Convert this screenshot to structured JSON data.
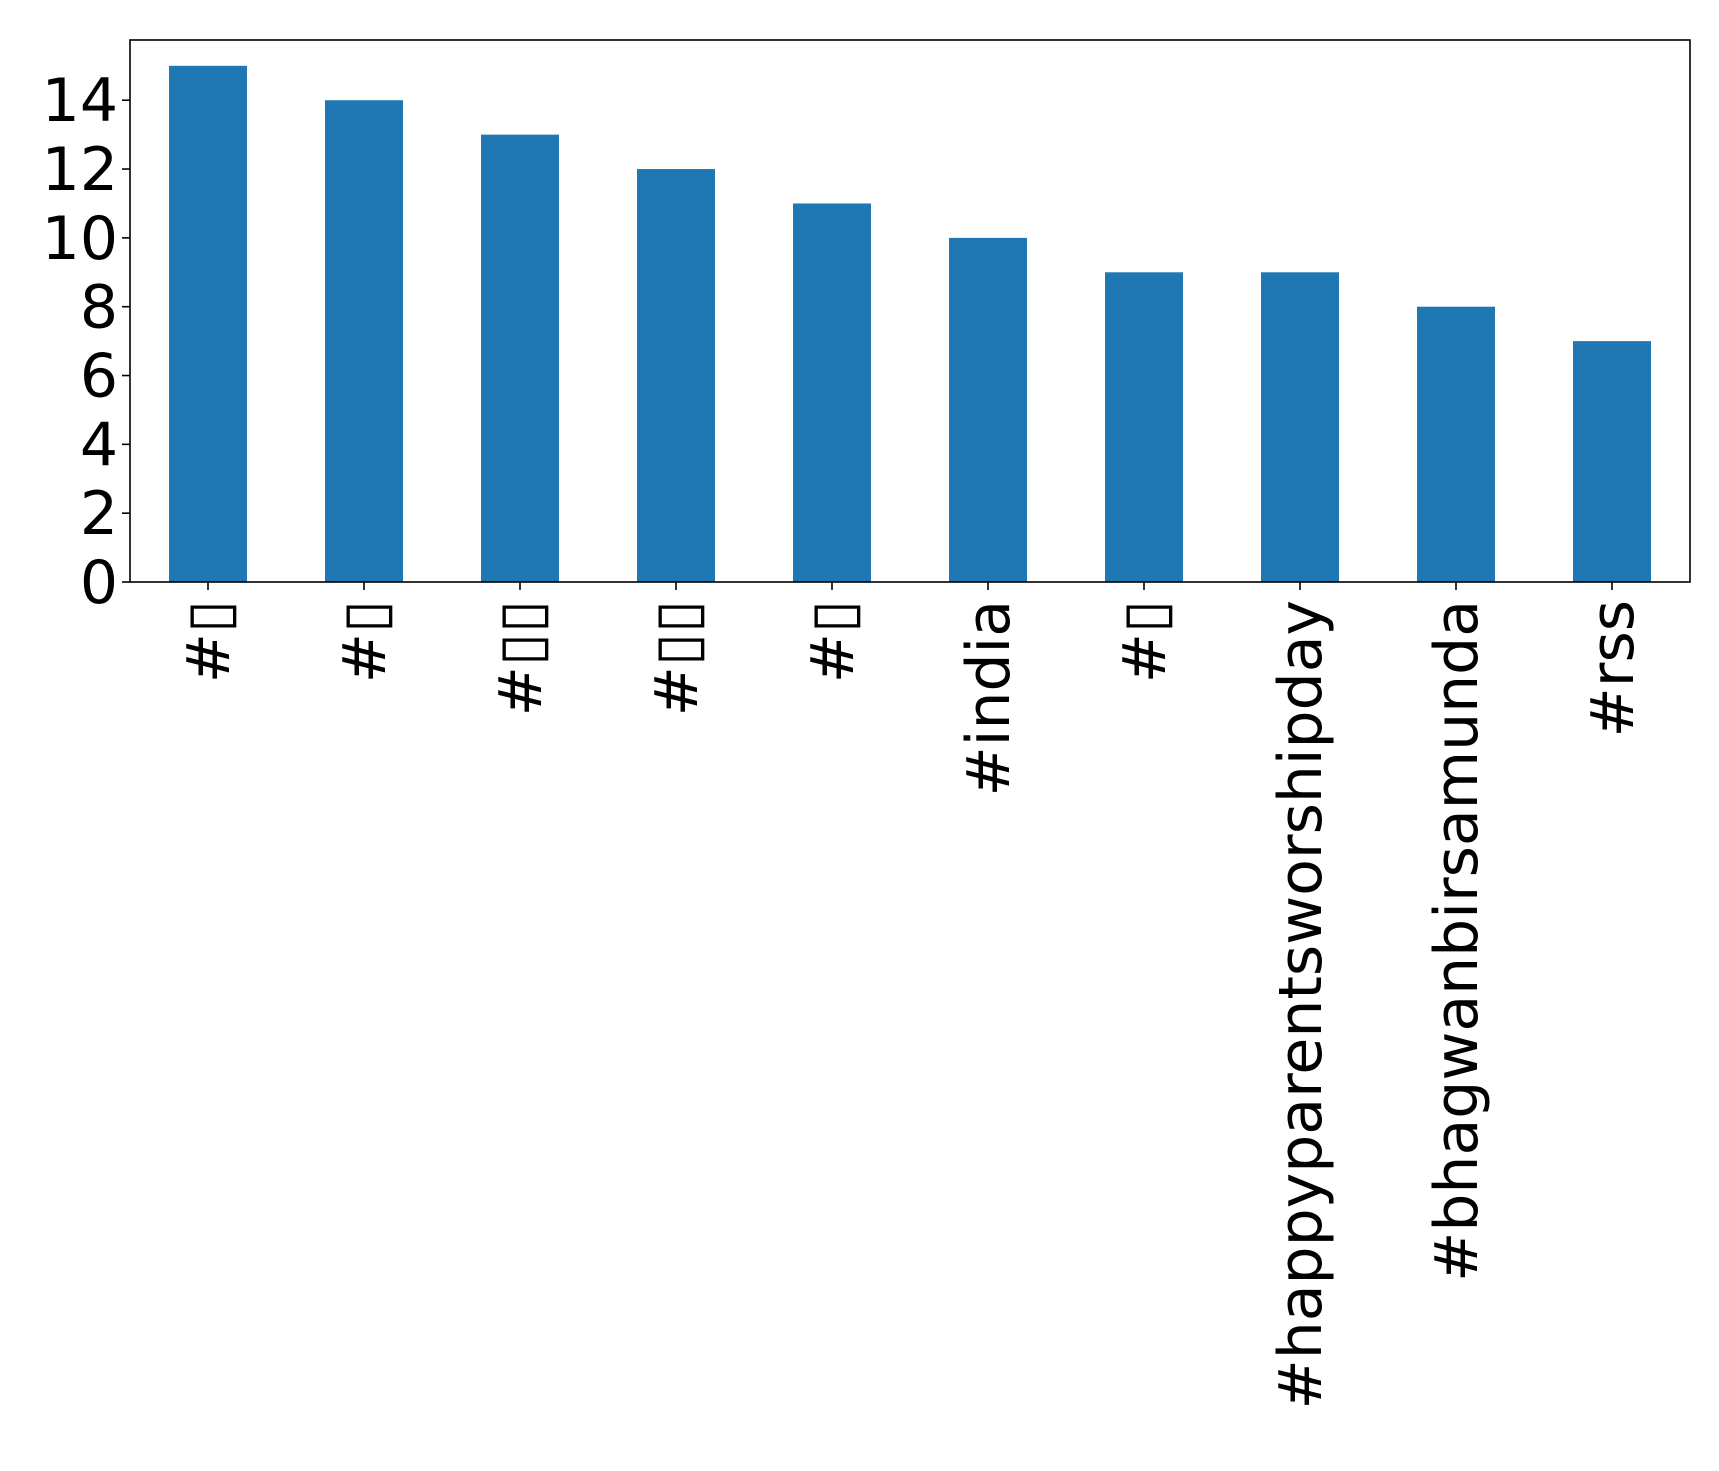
{
  "chart_data": {
    "type": "bar",
    "title": "",
    "xlabel": "",
    "ylabel": "",
    "categories": [
      "#▯",
      "#▯",
      "#▯▯",
      "#▯▯",
      "#▯",
      "#india",
      "#▯",
      "#happyparentsworshipday",
      "#bhagwanbirsamunda",
      "#rss"
    ],
    "values": [
      15,
      14,
      13,
      12,
      11,
      10,
      9,
      9,
      8,
      7
    ],
    "ylim": [
      0,
      15.75
    ],
    "yticks": [
      0,
      2,
      4,
      6,
      8,
      10,
      12,
      14
    ],
    "grid": false,
    "legend": "none",
    "bar_color": "#1f77b4"
  }
}
